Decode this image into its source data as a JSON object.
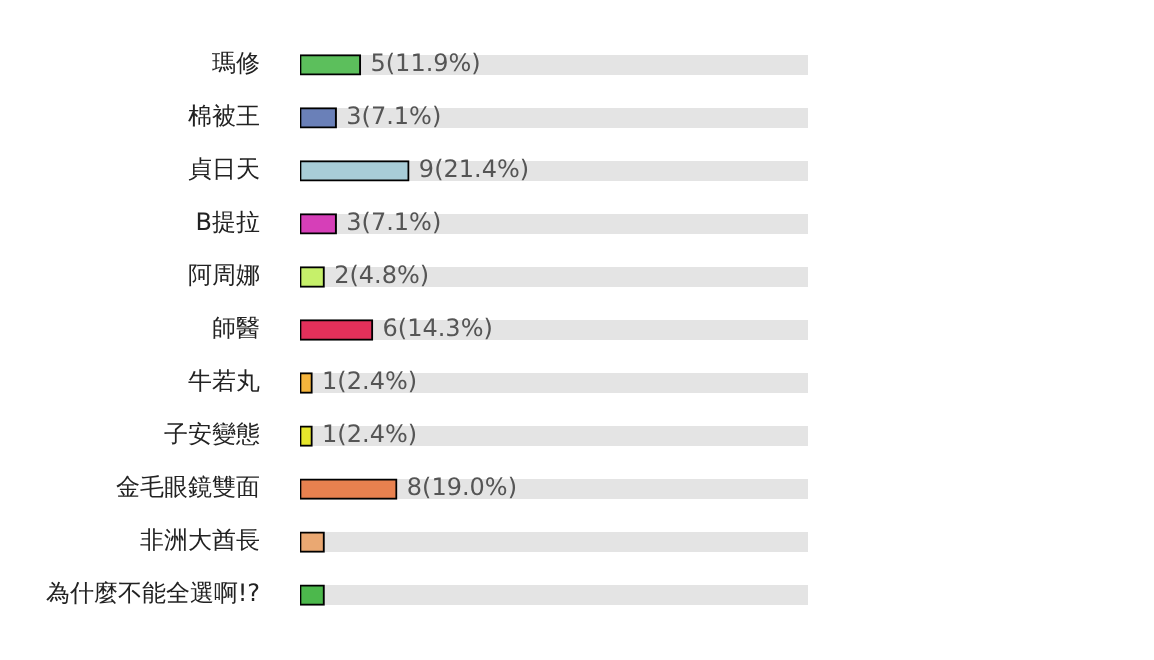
{
  "chart_data": {
    "type": "bar",
    "orientation": "horizontal",
    "categories": [
      "瑪修",
      "棉被王",
      "貞日天",
      "B提拉",
      "阿周娜",
      "師醫",
      "牛若丸",
      "子安變態",
      "金毛眼鏡雙面",
      "非洲大酋長",
      "為什麼不能全選啊!?"
    ],
    "values": [
      5,
      3,
      9,
      3,
      2,
      6,
      1,
      1,
      8,
      2,
      2
    ],
    "colors": [
      "#5cbf5c",
      "#6a80b8",
      "#a8cdd8",
      "#d63fb8",
      "#c6f06a",
      "#e2305a",
      "#f5b43c",
      "#e6e62c",
      "#e8814f",
      "#eaa872",
      "#4cb84c"
    ],
    "value_labels": [
      "5(11.9%)",
      "3(7.1%)",
      "9(21.4%)",
      "3(7.1%)",
      "2(4.8%)",
      "6(14.3%)",
      "1(2.4%)",
      "1(2.4%)",
      "8(19.0%)",
      null,
      null
    ]
  }
}
